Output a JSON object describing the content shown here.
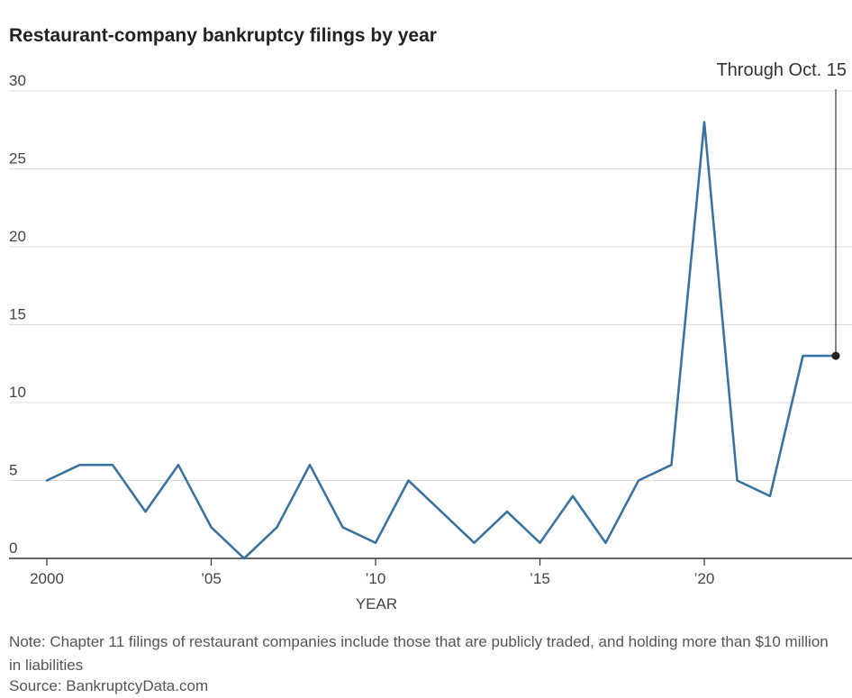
{
  "chart_data": {
    "type": "line",
    "title": "Restaurant-company bankruptcy filings by year",
    "xlabel": "YEAR",
    "ylabel": "",
    "xlim": [
      2000,
      2024
    ],
    "ylim": [
      0,
      30
    ],
    "y_ticks": [
      0,
      5,
      10,
      15,
      20,
      25,
      30
    ],
    "x_ticks": [
      2000,
      2005,
      2010,
      2015,
      2020
    ],
    "x_tick_labels": [
      "2000",
      "’05",
      "’10",
      "’15",
      "’20"
    ],
    "grid": "horizontal",
    "line_color": "#3b73a0",
    "x": [
      2000,
      2001,
      2002,
      2003,
      2004,
      2005,
      2006,
      2007,
      2008,
      2009,
      2010,
      2011,
      2012,
      2013,
      2014,
      2015,
      2016,
      2017,
      2018,
      2019,
      2020,
      2021,
      2022,
      2023,
      2024
    ],
    "values": [
      5,
      6,
      6,
      3,
      6,
      2,
      0,
      2,
      6,
      2,
      1,
      5,
      3,
      1,
      3,
      1,
      4,
      1,
      5,
      6,
      28,
      5,
      4,
      13,
      13
    ],
    "annotation": {
      "text": "Through Oct. 15",
      "x": 2024,
      "y": 13
    }
  },
  "note": "Note: Chapter 11 filings of restaurant companies include those that are publicly traded, and holding more than $10 million in liabilities",
  "source": "Source: BankruptcyData.com"
}
